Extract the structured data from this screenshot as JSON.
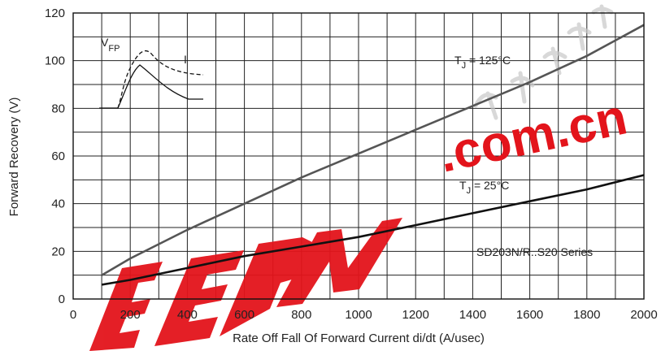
{
  "chart_data": {
    "type": "line",
    "title": "",
    "xlabel": "Rate Off Fall Of Forward Current di/dt (A/usec)",
    "ylabel": "Forward Recovery (V)",
    "xlim": [
      0,
      2000
    ],
    "ylim": [
      0,
      120
    ],
    "xticks": [
      0,
      200,
      400,
      600,
      800,
      1000,
      1200,
      1400,
      1600,
      1800,
      2000
    ],
    "yticks": [
      0,
      20,
      40,
      60,
      80,
      100,
      120
    ],
    "grid": true,
    "series": [
      {
        "name": "TJ = 125°C",
        "color": "#555555",
        "points": [
          [
            100,
            10
          ],
          [
            200,
            17
          ],
          [
            400,
            29
          ],
          [
            600,
            40
          ],
          [
            800,
            51
          ],
          [
            1000,
            61
          ],
          [
            1200,
            71
          ],
          [
            1400,
            81
          ],
          [
            1600,
            91
          ],
          [
            1800,
            102
          ],
          [
            2000,
            115
          ]
        ]
      },
      {
        "name": "TJ = 25°C",
        "color": "#111111",
        "points": [
          [
            100,
            6
          ],
          [
            200,
            8
          ],
          [
            400,
            13
          ],
          [
            600,
            18
          ],
          [
            800,
            22
          ],
          [
            1000,
            26
          ],
          [
            1200,
            31
          ],
          [
            1400,
            36
          ],
          [
            1600,
            41
          ],
          [
            1800,
            46
          ],
          [
            2000,
            52
          ]
        ]
      }
    ],
    "annotations": {
      "t125": {
        "main": "T",
        "sub": "J",
        "rest": " = 125°C"
      },
      "t25": {
        "main": "T",
        "sub": "J",
        "rest": " = 25°C"
      },
      "series_label": "SD203N/R..S20 Series",
      "inset": {
        "vfp_main": "V",
        "vfp_sub": "FP",
        "current_label": "I"
      }
    }
  },
  "watermark": {
    "text": ".com.cn",
    "logo": "EEPW",
    "color": "#e3141b"
  }
}
